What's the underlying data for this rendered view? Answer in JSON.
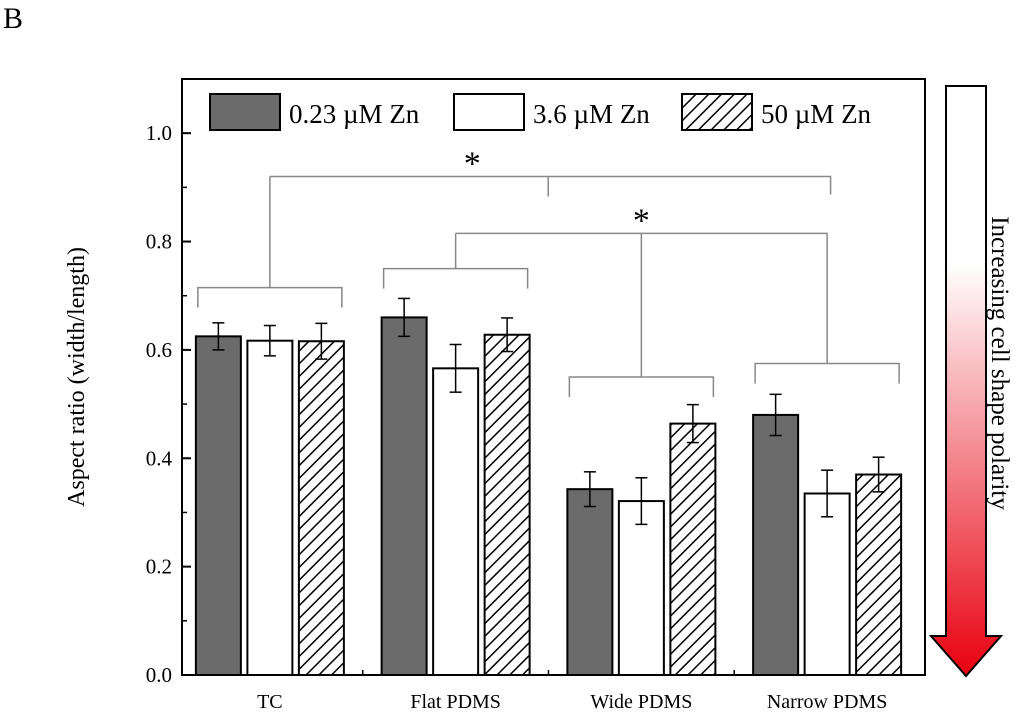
{
  "panel_label": "B",
  "colors": {
    "dark_bar": "#6b6b6b",
    "light_bar": "#ffffff",
    "hatch": "#000000",
    "arrow_top": "#ffffff",
    "arrow_bottom": "#e8000f"
  },
  "chart_data": {
    "type": "bar",
    "title": "",
    "xlabel": "",
    "ylabel": "Aspect ratio (width/length)",
    "ylim": [
      0.0,
      1.1
    ],
    "yticks": [
      "0.0",
      "0.2",
      "0.4",
      "0.6",
      "0.8",
      "1.0"
    ],
    "categories": [
      "TC",
      "Flat PDMS",
      "Wide PDMS",
      "Narrow PDMS"
    ],
    "series": [
      {
        "name": "0.23 µM Zn",
        "style": "dark",
        "values": [
          0.625,
          0.66,
          0.343,
          0.48
        ],
        "errors": [
          0.025,
          0.035,
          0.032,
          0.038
        ]
      },
      {
        "name": "3.6 µM Zn",
        "style": "white",
        "values": [
          0.617,
          0.566,
          0.321,
          0.335
        ],
        "errors": [
          0.028,
          0.044,
          0.043,
          0.043
        ]
      },
      {
        "name": "50 µM Zn",
        "style": "hatched",
        "values": [
          0.616,
          0.628,
          0.464,
          0.37
        ],
        "errors": [
          0.033,
          0.031,
          0.035,
          0.032
        ]
      }
    ],
    "legend_position": "top",
    "significance": [
      {
        "label": "*",
        "from": "TC",
        "to": "Narrow PDMS"
      },
      {
        "label": "*",
        "from": "Flat PDMS",
        "to": [
          "Wide PDMS",
          "Narrow PDMS"
        ]
      }
    ],
    "side_annotation": "Increasing cell shape polarity"
  }
}
